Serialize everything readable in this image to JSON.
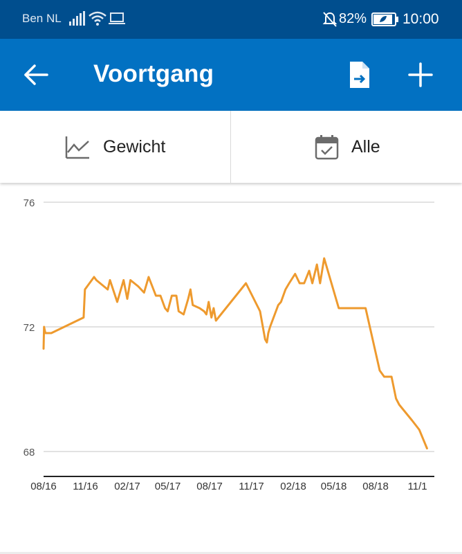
{
  "status_bar": {
    "carrier": "Ben NL",
    "battery_percent": "82%",
    "time": "10:00",
    "icons": [
      "signal-icon",
      "wifi-icon",
      "laptop-icon",
      "mute-icon",
      "battery-saver-icon"
    ]
  },
  "app_bar": {
    "title": "Voortgang",
    "icons": [
      "back-arrow-icon",
      "export-file-icon",
      "add-icon"
    ],
    "color": "#0271c2"
  },
  "toolbar": {
    "metric_label": "Gewicht",
    "metric_icon": "line-chart-icon",
    "period_label": "Alle",
    "period_icon": "calendar-check-icon"
  },
  "chart_data": {
    "type": "line",
    "title": "",
    "xlabel": "",
    "ylabel": "",
    "ylim": [
      67.2,
      76
    ],
    "y_ticks": [
      76,
      72,
      68
    ],
    "x_ticks": [
      "08/16",
      "11/16",
      "02/17",
      "05/17",
      "08/17",
      "11/17",
      "02/18",
      "05/18",
      "08/18",
      "11/1"
    ],
    "grid": true,
    "line_color": "#ee9a2e",
    "series": [
      {
        "x": [
          "2016-08-01",
          "2016-08-02",
          "2016-08-05",
          "2016-08-18",
          "2016-10-28",
          "2016-10-31",
          "2016-11-20",
          "2016-11-25",
          "2016-12-20",
          "2016-12-25",
          "2017-01-10",
          "2017-01-24",
          "2017-02-01",
          "2017-02-08",
          "2017-02-25",
          "2017-03-10",
          "2017-03-20",
          "2017-04-05",
          "2017-04-15",
          "2017-04-25",
          "2017-05-01",
          "2017-05-10",
          "2017-05-20",
          "2017-05-25",
          "2017-06-05",
          "2017-06-15",
          "2017-06-20",
          "2017-06-25",
          "2017-07-10",
          "2017-07-20",
          "2017-07-25",
          "2017-07-30",
          "2017-08-05",
          "2017-08-10",
          "2017-08-15",
          "2017-10-20",
          "2017-11-20",
          "2017-12-01",
          "2017-12-05",
          "2017-12-08",
          "2017-12-12",
          "2017-12-30",
          "2018-01-05",
          "2018-01-15",
          "2018-01-23",
          "2018-02-05",
          "2018-02-15",
          "2018-02-25",
          "2018-03-08",
          "2018-03-15",
          "2018-03-25",
          "2018-04-01",
          "2018-04-10",
          "2018-05-12",
          "2018-07-10",
          "2018-08-10",
          "2018-08-20",
          "2018-09-05",
          "2018-09-15",
          "2018-09-22",
          "2018-10-20",
          "2018-11-05",
          "2018-11-22"
        ],
        "y": [
          71.3,
          72.0,
          71.8,
          71.8,
          72.3,
          73.2,
          73.6,
          73.5,
          73.2,
          73.5,
          72.8,
          73.5,
          72.9,
          73.5,
          73.3,
          73.1,
          73.6,
          73.0,
          73.0,
          72.6,
          72.5,
          73.0,
          73.0,
          72.5,
          72.4,
          72.9,
          73.2,
          72.7,
          72.6,
          72.5,
          72.4,
          72.8,
          72.3,
          72.6,
          72.2,
          73.4,
          72.5,
          71.6,
          71.5,
          71.8,
          72.0,
          72.7,
          72.8,
          73.2,
          73.4,
          73.7,
          73.4,
          73.4,
          73.8,
          73.4,
          74.0,
          73.4,
          74.2,
          72.6,
          72.6,
          70.6,
          70.4,
          70.4,
          69.7,
          69.5,
          69.0,
          68.7,
          68.1
        ]
      }
    ]
  }
}
